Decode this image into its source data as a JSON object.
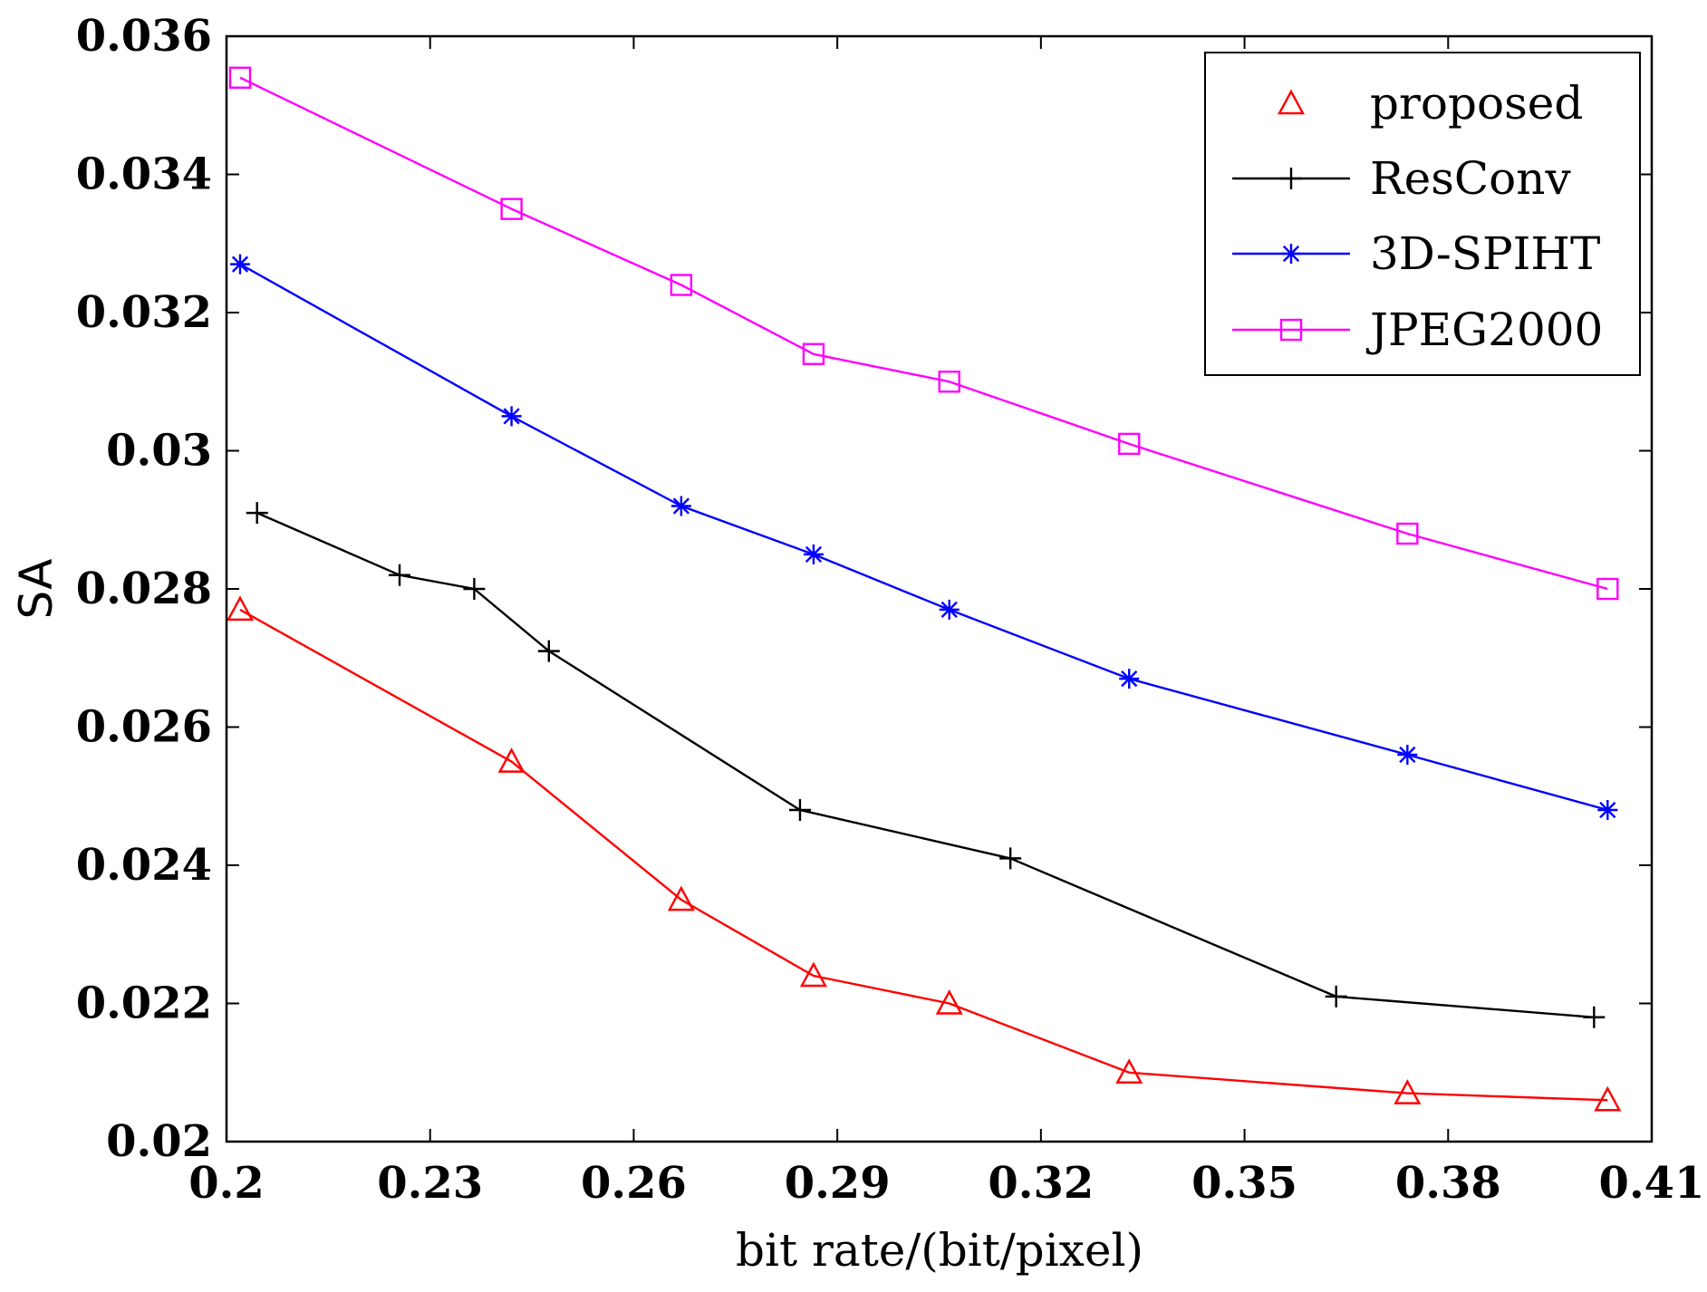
{
  "chart_data": {
    "type": "line",
    "title": "",
    "xlabel": "bit rate/(bit/pixel)",
    "ylabel": "SA",
    "xlim": [
      0.2,
      0.41
    ],
    "ylim": [
      0.02,
      0.036
    ],
    "xticks": [
      0.2,
      0.23,
      0.26,
      0.29,
      0.32,
      0.35,
      0.38,
      0.41
    ],
    "xtick_labels": [
      "0.2",
      "0.23",
      "0.26",
      "0.29",
      "0.32",
      "0.35",
      "0.38",
      "0.41"
    ],
    "yticks": [
      0.02,
      0.022,
      0.024,
      0.026,
      0.028,
      0.03,
      0.032,
      0.034,
      0.036
    ],
    "ytick_labels": [
      "0.02",
      "0.022",
      "0.024",
      "0.026",
      "0.028",
      "0.03",
      "0.032",
      "0.034",
      "0.036"
    ],
    "grid": false,
    "legend_position": "top-right",
    "series": [
      {
        "name": "proposed",
        "color": "#ff0000",
        "marker": "triangle",
        "x": [
          0.202,
          0.242,
          0.267,
          0.2865,
          0.3065,
          0.333,
          0.374,
          0.4035
        ],
        "y": [
          0.0277,
          0.0255,
          0.0235,
          0.0224,
          0.022,
          0.021,
          0.0207,
          0.0206
        ]
      },
      {
        "name": "ResConv",
        "color": "#000000",
        "marker": "plus",
        "x": [
          0.2045,
          0.2255,
          0.2365,
          0.2475,
          0.2845,
          0.3155,
          0.3635,
          0.4015
        ],
        "y": [
          0.0291,
          0.0282,
          0.028,
          0.0271,
          0.0248,
          0.0241,
          0.0221,
          0.0218
        ]
      },
      {
        "name": "3D-SPIHT",
        "color": "#0000ff",
        "marker": "star",
        "x": [
          0.202,
          0.242,
          0.267,
          0.2865,
          0.3065,
          0.333,
          0.374,
          0.4035
        ],
        "y": [
          0.0327,
          0.0305,
          0.0292,
          0.0285,
          0.0277,
          0.0267,
          0.0256,
          0.0248
        ]
      },
      {
        "name": "JPEG2000",
        "color": "#ff00ff",
        "marker": "square",
        "x": [
          0.202,
          0.242,
          0.267,
          0.2865,
          0.3065,
          0.333,
          0.374,
          0.4035
        ],
        "y": [
          0.0354,
          0.0335,
          0.0324,
          0.0314,
          0.031,
          0.0301,
          0.0288,
          0.028
        ]
      }
    ]
  }
}
